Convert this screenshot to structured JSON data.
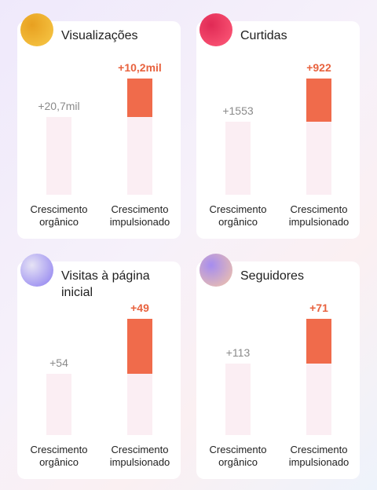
{
  "chart_data": [
    {
      "type": "bar",
      "title": "Visualizações",
      "categories": [
        "Crescimento orgânico",
        "Crescimento impulsionado"
      ],
      "values": [
        20700,
        10200
      ],
      "value_labels": [
        "+20,7mil",
        "+10,2mil"
      ],
      "colors": [
        "#fbeef3",
        "#f06b4b"
      ]
    },
    {
      "type": "bar",
      "title": "Curtidas",
      "categories": [
        "Crescimento orgânico",
        "Crescimento impulsionado"
      ],
      "values": [
        1553,
        922
      ],
      "value_labels": [
        "+1553",
        "+922"
      ],
      "colors": [
        "#fbeef3",
        "#f06b4b"
      ]
    },
    {
      "type": "bar",
      "title": "Visitas à página inicial",
      "categories": [
        "Crescimento orgânico",
        "Crescimento impulsionado"
      ],
      "values": [
        54,
        49
      ],
      "value_labels": [
        "+54",
        "+49"
      ],
      "colors": [
        "#fbeef3",
        "#f06b4b"
      ]
    },
    {
      "type": "bar",
      "title": "Seguidores",
      "categories": [
        "Crescimento orgânico",
        "Crescimento impulsionado"
      ],
      "values": [
        113,
        71
      ],
      "value_labels": [
        "+113",
        "+71"
      ],
      "colors": [
        "#fbeef3",
        "#f06b4b"
      ]
    }
  ]
}
